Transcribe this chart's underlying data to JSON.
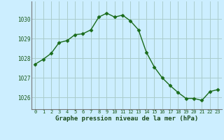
{
  "x": [
    0,
    1,
    2,
    3,
    4,
    5,
    6,
    7,
    8,
    9,
    10,
    11,
    12,
    13,
    14,
    15,
    16,
    17,
    18,
    19,
    20,
    21,
    22,
    23
  ],
  "y": [
    1027.7,
    1027.95,
    1028.25,
    1028.8,
    1028.9,
    1029.2,
    1029.25,
    1029.45,
    1030.1,
    1030.3,
    1030.1,
    1030.2,
    1029.9,
    1029.45,
    1028.3,
    1027.55,
    1027.0,
    1026.6,
    1026.25,
    1025.95,
    1025.95,
    1025.85,
    1026.3,
    1026.4
  ],
  "line_color": "#1a6b1a",
  "marker": "D",
  "marker_size": 2.5,
  "bg_color": "#cceeff",
  "grid_color": "#aacccc",
  "xlabel": "Graphe pression niveau de la mer (hPa)",
  "xlabel_color": "#1a4a1a",
  "tick_label_color": "#1a5a1a",
  "ylim": [
    1025.4,
    1030.9
  ],
  "yticks": [
    1026,
    1027,
    1028,
    1029,
    1030
  ],
  "xlim": [
    -0.5,
    23.5
  ],
  "xticks": [
    0,
    1,
    2,
    3,
    4,
    5,
    6,
    7,
    8,
    9,
    10,
    11,
    12,
    13,
    14,
    15,
    16,
    17,
    18,
    19,
    20,
    21,
    22,
    23
  ],
  "xtick_labels": [
    "0",
    "1",
    "2",
    "3",
    "4",
    "5",
    "6",
    "7",
    "8",
    "9",
    "10",
    "11",
    "12",
    "13",
    "14",
    "15",
    "16",
    "17",
    "18",
    "19",
    "20",
    "21",
    "22",
    "23"
  ],
  "spine_color": "#777777",
  "figsize": [
    3.2,
    2.0
  ],
  "dpi": 100
}
